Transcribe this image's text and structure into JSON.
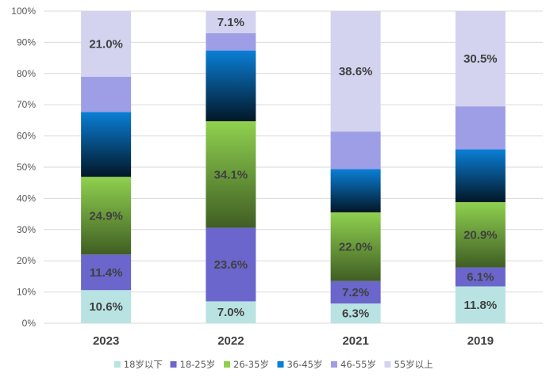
{
  "chart_data": {
    "type": "bar",
    "stacked": true,
    "percent": true,
    "categories": [
      "2023",
      "2022",
      "2021",
      "2019"
    ],
    "series": [
      {
        "name": "18岁以下",
        "values": [
          10.6,
          7.0,
          6.3,
          11.8
        ],
        "labels": [
          "10.6%",
          "7.0%",
          "6.3%",
          "11.8%"
        ],
        "color": "#b9e3e3"
      },
      {
        "name": "18-25岁",
        "values": [
          11.4,
          23.6,
          7.2,
          6.1
        ],
        "labels": [
          "11.4%",
          "23.6%",
          "7.2%",
          "6.1%"
        ],
        "color": "#6b66cc"
      },
      {
        "name": "26-35岁",
        "values": [
          24.9,
          34.1,
          22.0,
          20.9
        ],
        "labels": [
          "24.9%",
          "34.1%",
          "22.0%",
          "20.9%"
        ],
        "color": "#8fd14f"
      },
      {
        "name": "36-45岁",
        "values": [
          20.8,
          22.7,
          13.9,
          16.9
        ],
        "labels": [
          "",
          "",
          "",
          ""
        ],
        "color": "#0a7fd6"
      },
      {
        "name": "46-55岁",
        "values": [
          11.3,
          5.5,
          12.0,
          13.8
        ],
        "labels": [
          "",
          "",
          "",
          ""
        ],
        "color": "#9e9ee6"
      },
      {
        "name": "55岁以上",
        "values": [
          21.0,
          7.1,
          38.6,
          30.5
        ],
        "labels": [
          "21.0%",
          "7.1%",
          "38.6%",
          "30.5%"
        ],
        "color": "#d3d3f0"
      }
    ],
    "yticks": [
      "0%",
      "10%",
      "20%",
      "30%",
      "40%",
      "50%",
      "60%",
      "70%",
      "80%",
      "90%",
      "100%"
    ],
    "ylim": [
      0,
      100
    ],
    "grid": true,
    "legend": "bottom"
  }
}
